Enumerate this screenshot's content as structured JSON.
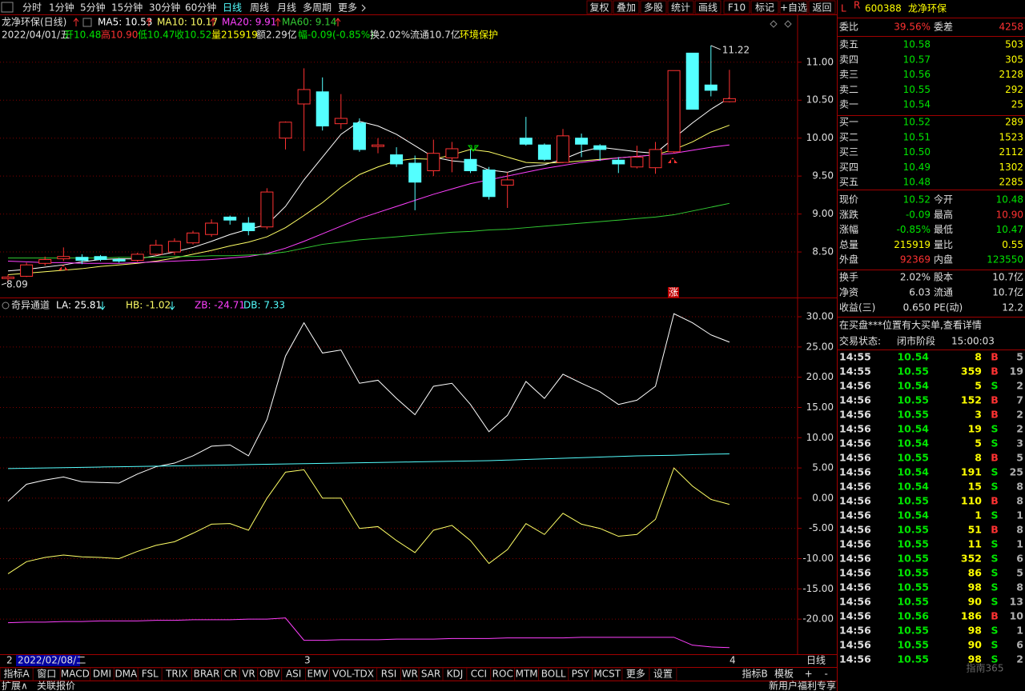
{
  "toolbar": {
    "tabs": [
      "分时",
      "1分钟",
      "5分钟",
      "15分钟",
      "30分钟",
      "60分钟",
      "日线",
      "周线",
      "月线",
      "多周期",
      "更多"
    ],
    "active": 6,
    "buttons": [
      "复权",
      "叠加",
      "多股",
      "统计",
      "画线",
      "F10",
      "标记",
      "+自选",
      "返回"
    ]
  },
  "main_chart": {
    "title": "龙净环保(日线)",
    "ma_labels": [
      "MA5: 10.53",
      "MA10: 10.17",
      "MA20: 9.91",
      "MA60: 9.14"
    ],
    "info": [
      "2022/04/01/五",
      "开10.48",
      "高10.90",
      "低10.47",
      "收10.52",
      "量215919",
      "额2.29亿",
      "幅-0.09(-0.85%)",
      "换2.02%",
      "流通10.7亿",
      "环境保护"
    ],
    "ylim": [
      7.9,
      11.63
    ],
    "yticks": [
      {
        "value": 11,
        "label": "11.00"
      },
      {
        "value": 10.5,
        "label": "10.50"
      },
      {
        "value": 10,
        "label": "10.00"
      },
      {
        "value": 9.5,
        "label": "9.50"
      },
      {
        "value": 9,
        "label": "9.00"
      },
      {
        "value": 8.5,
        "label": "8.50"
      }
    ],
    "candles": [
      [
        8.15,
        8.2,
        8.09,
        8.17
      ],
      [
        8.18,
        8.36,
        8.17,
        8.33
      ],
      [
        8.35,
        8.44,
        8.32,
        8.4
      ],
      [
        8.41,
        8.56,
        8.38,
        8.44
      ],
      [
        8.43,
        8.47,
        8.34,
        8.39
      ],
      [
        8.44,
        8.46,
        8.38,
        8.4
      ],
      [
        8.4,
        8.42,
        8.36,
        8.38
      ],
      [
        8.39,
        8.49,
        8.37,
        8.47
      ],
      [
        8.47,
        8.66,
        8.45,
        8.59
      ],
      [
        8.5,
        8.68,
        8.46,
        8.64
      ],
      [
        8.62,
        8.78,
        8.6,
        8.75
      ],
      [
        8.73,
        8.93,
        8.7,
        8.88
      ],
      [
        8.96,
        8.98,
        8.86,
        8.92
      ],
      [
        8.88,
        8.96,
        8.72,
        8.78
      ],
      [
        8.83,
        9.34,
        8.8,
        9.29
      ],
      [
        10.0,
        10.22,
        9.85,
        10.21
      ],
      [
        10.45,
        10.92,
        9.83,
        10.64
      ],
      [
        10.61,
        10.8,
        10.1,
        10.16
      ],
      [
        10.19,
        10.58,
        10.12,
        10.26
      ],
      [
        10.2,
        10.26,
        9.82,
        9.85
      ],
      [
        9.89,
        10.0,
        9.8,
        9.91
      ],
      [
        9.78,
        9.88,
        9.62,
        9.66
      ],
      [
        9.67,
        9.77,
        9.05,
        9.42
      ],
      [
        9.57,
        9.98,
        9.5,
        9.8
      ],
      [
        9.74,
        9.95,
        9.55,
        9.86
      ],
      [
        9.72,
        9.85,
        9.54,
        9.57
      ],
      [
        9.58,
        9.62,
        9.19,
        9.23
      ],
      [
        9.38,
        9.55,
        9.08,
        9.45
      ],
      [
        10.0,
        10.28,
        9.9,
        9.92
      ],
      [
        9.91,
        9.93,
        9.7,
        9.72
      ],
      [
        9.68,
        10.12,
        9.67,
        10.03
      ],
      [
        10.0,
        10.06,
        9.75,
        9.92
      ],
      [
        9.9,
        9.92,
        9.7,
        9.85
      ],
      [
        9.71,
        9.75,
        9.54,
        9.66
      ],
      [
        9.62,
        9.9,
        9.6,
        9.75
      ],
      [
        9.61,
        9.95,
        9.53,
        9.85
      ],
      [
        9.82,
        10.89,
        9.8,
        10.89
      ],
      [
        11.12,
        11.12,
        10.38,
        10.38
      ],
      [
        10.7,
        11.22,
        10.55,
        10.63
      ],
      [
        10.48,
        10.9,
        10.47,
        10.52
      ]
    ],
    "series": [
      {
        "name": "MA5",
        "color": "#ffffff",
        "values": [
          8.25,
          8.27,
          8.3,
          8.33,
          8.37,
          8.4,
          8.41,
          8.41,
          8.45,
          8.5,
          8.56,
          8.64,
          8.73,
          8.8,
          8.86,
          9.1,
          9.45,
          9.75,
          10.05,
          10.22,
          10.16,
          10.05,
          9.9,
          9.75,
          9.7,
          9.68,
          9.58,
          9.55,
          9.62,
          9.65,
          9.72,
          9.82,
          9.88,
          9.85,
          9.82,
          9.8,
          10.0,
          10.2,
          10.38,
          10.53
        ]
      },
      {
        "name": "MA10",
        "color": "#ffff66",
        "values": [
          8.2,
          8.22,
          8.24,
          8.26,
          8.28,
          8.31,
          8.33,
          8.35,
          8.38,
          8.42,
          8.47,
          8.52,
          8.58,
          8.63,
          8.7,
          8.82,
          8.98,
          9.15,
          9.35,
          9.52,
          9.62,
          9.7,
          9.73,
          9.72,
          9.78,
          9.85,
          9.82,
          9.75,
          9.68,
          9.67,
          9.68,
          9.7,
          9.72,
          9.74,
          9.76,
          9.78,
          9.85,
          9.95,
          10.08,
          10.17
        ]
      },
      {
        "name": "MA20",
        "color": "#ff40ff",
        "values": [
          8.38,
          8.37,
          8.36,
          8.36,
          8.35,
          8.35,
          8.35,
          8.36,
          8.37,
          8.38,
          8.39,
          8.4,
          8.42,
          8.44,
          8.48,
          8.55,
          8.64,
          8.74,
          8.84,
          8.94,
          9.02,
          9.1,
          9.18,
          9.26,
          9.33,
          9.4,
          9.45,
          9.5,
          9.55,
          9.6,
          9.64,
          9.68,
          9.71,
          9.74,
          9.76,
          9.78,
          9.8,
          9.84,
          9.88,
          9.91
        ]
      },
      {
        "name": "MA60",
        "color": "#33cc33",
        "values": [
          8.42,
          8.42,
          8.42,
          8.42,
          8.42,
          8.42,
          8.43,
          8.43,
          8.43,
          8.44,
          8.44,
          8.45,
          8.45,
          8.46,
          8.47,
          8.5,
          8.55,
          8.6,
          8.63,
          8.66,
          8.68,
          8.7,
          8.72,
          8.74,
          8.76,
          8.77,
          8.79,
          8.8,
          8.82,
          8.84,
          8.86,
          8.88,
          8.9,
          8.92,
          8.94,
          8.96,
          8.99,
          9.04,
          9.09,
          9.14
        ]
      }
    ],
    "high_label": "11.22",
    "low_label": "8.09",
    "mark": "涨"
  },
  "indicator": {
    "name": "奇异通道",
    "labels": [
      "LA: 25.81",
      "HB: -1.02",
      "ZB: -24.71",
      "DB: 7.33"
    ],
    "ylim": [
      -25.8,
      30.8
    ],
    "yticks": [
      {
        "value": 30,
        "label": "30.00"
      },
      {
        "value": 25,
        "label": "25.00"
      },
      {
        "value": 20,
        "label": "20.00"
      },
      {
        "value": 15,
        "label": "15.00"
      },
      {
        "value": 10,
        "label": "10.00"
      },
      {
        "value": 5,
        "label": "5.00"
      },
      {
        "value": 0,
        "label": "0.00"
      },
      {
        "value": -5,
        "label": "-5.00"
      },
      {
        "value": -10,
        "label": "-10.00"
      },
      {
        "value": -15,
        "label": "-15.00"
      },
      {
        "value": -20,
        "label": "-20.00"
      }
    ],
    "series": [
      {
        "name": "LA",
        "color": "#ffffff",
        "values": [
          -0.5,
          2.3,
          3,
          3.5,
          2.7,
          2.6,
          2.5,
          4,
          5.2,
          5.8,
          7,
          8.6,
          8.8,
          7,
          13,
          23.5,
          29,
          24,
          24.5,
          19,
          19.5,
          16.5,
          13.8,
          18.5,
          19,
          15.5,
          11,
          13.7,
          19.3,
          16.5,
          20.5,
          19,
          17.6,
          15.5,
          16.2,
          18.5,
          30.5,
          29,
          27,
          25.81
        ]
      },
      {
        "name": "HB",
        "color": "#ffff66",
        "values": [
          -12.5,
          -10.5,
          -9.8,
          -9.4,
          -9.7,
          -9.8,
          -10,
          -8.8,
          -7.8,
          -7.2,
          -5.8,
          -4.3,
          -4.2,
          -5.3,
          0,
          4.3,
          4.7,
          0,
          0,
          -5,
          -4.7,
          -7,
          -9,
          -5.3,
          -4.5,
          -7,
          -10.8,
          -8.5,
          -4.2,
          -6,
          -2.5,
          -4.3,
          -5,
          -6.3,
          -6,
          -3.5,
          5,
          2,
          -0.2,
          -1.02
        ]
      },
      {
        "name": "ZB",
        "color": "#ff40ff",
        "values": [
          -20.6,
          -20.5,
          -20.5,
          -20.4,
          -20.4,
          -20.3,
          -20.3,
          -20.3,
          -20.2,
          -20.2,
          -20.1,
          -20.1,
          -20.1,
          -20.0,
          -20.0,
          -19.8,
          -23.5,
          -23.5,
          -23.4,
          -23.4,
          -23.4,
          -23.3,
          -23.3,
          -23.3,
          -23.2,
          -23.2,
          -23.2,
          -23.1,
          -23.1,
          -23.1,
          -23.1,
          -23.0,
          -23.0,
          -23.0,
          -23.0,
          -23.0,
          -23.0,
          -24.3,
          -24.6,
          -24.71
        ]
      },
      {
        "name": "DB",
        "color": "#54ffff",
        "values": [
          4.9,
          4.95,
          5.0,
          5.05,
          5.1,
          5.15,
          5.2,
          5.25,
          5.3,
          5.35,
          5.4,
          5.45,
          5.5,
          5.55,
          5.6,
          5.65,
          5.7,
          5.75,
          5.8,
          5.85,
          5.9,
          5.95,
          6.0,
          6.05,
          6.1,
          6.15,
          6.2,
          6.3,
          6.4,
          6.5,
          6.6,
          6.7,
          6.8,
          6.9,
          7.0,
          7.05,
          7.1,
          7.2,
          7.28,
          7.33
        ]
      }
    ]
  },
  "date_axis": {
    "first": "2",
    "cursor_date": "2022/02/08/二",
    "months": [
      "3",
      "4"
    ],
    "period": "日线"
  },
  "tabs_a": [
    "指标A",
    "窗口",
    "MACD",
    "DMI",
    "DMA",
    "FSL",
    "TRIX",
    "BRAR",
    "CR",
    "VR",
    "OBV",
    "ASI",
    "EMV",
    "VOL-TDX",
    "RSI",
    "WR",
    "SAR",
    "KDJ",
    "CCI",
    "ROC",
    "MTM",
    "BOLL",
    "PSY",
    "MCST",
    "更多",
    "设置"
  ],
  "tabs_b": [
    "指标B",
    "模板",
    "+",
    "-"
  ],
  "footer": [
    "扩展∧",
    "关联报价",
    "新用户福利专享"
  ],
  "watermark": "指南365",
  "quote": {
    "flag_l": "L",
    "flag_r": "R",
    "code": "600388",
    "name": "龙净环保",
    "ratio": [
      "委比",
      "39.56%",
      "委差",
      "4258"
    ],
    "asks": [
      [
        "卖五",
        "10.58",
        "503"
      ],
      [
        "卖四",
        "10.57",
        "305"
      ],
      [
        "卖三",
        "10.56",
        "2128"
      ],
      [
        "卖二",
        "10.55",
        "292"
      ],
      [
        "卖一",
        "10.54",
        "25"
      ]
    ],
    "bids": [
      [
        "买一",
        "10.52",
        "289"
      ],
      [
        "买二",
        "10.51",
        "1523"
      ],
      [
        "买三",
        "10.50",
        "2112"
      ],
      [
        "买四",
        "10.49",
        "1302"
      ],
      [
        "买五",
        "10.48",
        "2285"
      ]
    ],
    "stats": [
      [
        "现价",
        "10.52",
        "今开",
        "10.48"
      ],
      [
        "涨跌",
        "-0.09",
        "最高",
        "10.90"
      ],
      [
        "涨幅",
        "-0.85%",
        "最低",
        "10.47"
      ],
      [
        "总量",
        "215919",
        "量比",
        "0.55"
      ],
      [
        "外盘",
        "92369",
        "内盘",
        "123550"
      ]
    ],
    "fund": [
      [
        "换手",
        "2.02%",
        "股本",
        "10.7亿"
      ],
      [
        "净资",
        "6.03",
        "流通",
        "10.7亿"
      ],
      [
        "收益(三)",
        "0.650",
        "PE(动)",
        "12.2"
      ]
    ],
    "notice": "在买盘***位置有大买单,查看详情",
    "status": [
      "交易状态:",
      "闭市阶段",
      "15:00:03"
    ]
  },
  "trades": [
    [
      "14:55",
      "10.54",
      "8",
      "B",
      "5"
    ],
    [
      "14:55",
      "10.55",
      "359",
      "B",
      "19"
    ],
    [
      "14:56",
      "10.54",
      "5",
      "S",
      "2"
    ],
    [
      "14:56",
      "10.55",
      "152",
      "B",
      "7"
    ],
    [
      "14:56",
      "10.55",
      "3",
      "B",
      "2"
    ],
    [
      "14:56",
      "10.54",
      "19",
      "S",
      "2"
    ],
    [
      "14:56",
      "10.54",
      "5",
      "S",
      "3"
    ],
    [
      "14:56",
      "10.55",
      "8",
      "B",
      "5"
    ],
    [
      "14:56",
      "10.54",
      "191",
      "S",
      "25"
    ],
    [
      "14:56",
      "10.54",
      "15",
      "S",
      "8"
    ],
    [
      "14:56",
      "10.55",
      "110",
      "B",
      "8"
    ],
    [
      "14:56",
      "10.54",
      "1",
      "S",
      "1"
    ],
    [
      "14:56",
      "10.55",
      "51",
      "B",
      "8"
    ],
    [
      "14:56",
      "10.55",
      "11",
      "S",
      "1"
    ],
    [
      "14:56",
      "10.55",
      "352",
      "S",
      "6"
    ],
    [
      "14:56",
      "10.55",
      "86",
      "S",
      "5"
    ],
    [
      "14:56",
      "10.55",
      "98",
      "S",
      "8"
    ],
    [
      "14:56",
      "10.55",
      "90",
      "S",
      "13"
    ],
    [
      "14:56",
      "10.56",
      "186",
      "B",
      "10"
    ],
    [
      "14:56",
      "10.55",
      "98",
      "S",
      "1"
    ],
    [
      "14:56",
      "10.55",
      "90",
      "S",
      "6"
    ],
    [
      "14:56",
      "10.55",
      "98",
      "S",
      "2"
    ]
  ]
}
